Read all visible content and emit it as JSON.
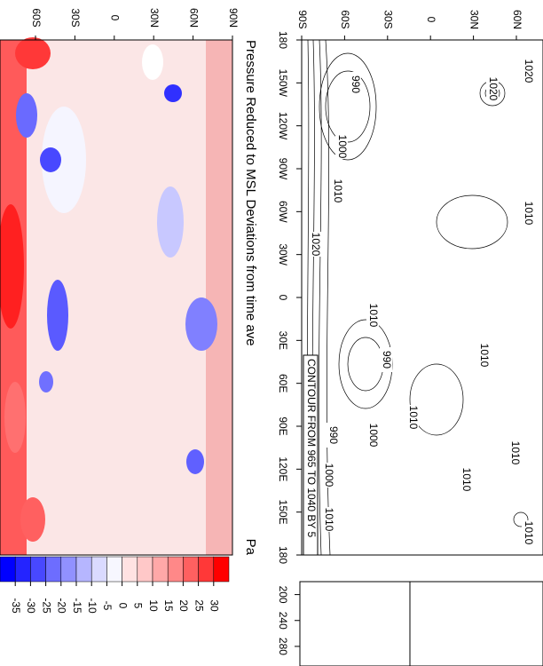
{
  "panels": [
    {
      "lat_ticks": [
        {
          "value": -90,
          "label": "90S"
        },
        {
          "value": -60,
          "label": "60S"
        },
        {
          "value": -30,
          "label": "30S"
        },
        0,
        {
          "value": 30,
          "label": "30N"
        },
        {
          "value": 60,
          "label": "60N"
        }
      ],
      "lon_ticks": [
        {
          "value": -180,
          "label": "180"
        },
        {
          "value": -150,
          "label": "150W"
        },
        {
          "value": -120,
          "label": "120W"
        },
        {
          "value": -90,
          "label": "90W"
        },
        {
          "value": -60,
          "label": "60W"
        },
        {
          "value": -30,
          "label": "30W"
        },
        0,
        {
          "value": 30,
          "label": "30E"
        },
        {
          "value": 60,
          "label": "60E"
        },
        {
          "value": 90,
          "label": "90E"
        },
        {
          "value": 120,
          "label": "120E"
        },
        {
          "value": 150,
          "label": "150E"
        },
        180
      ],
      "contour_labels": [
        990,
        1020,
        1020,
        1000,
        1010,
        1010,
        1020,
        1010,
        990,
        1010,
        1010,
        1000,
        990,
        1000,
        1010,
        1010,
        1010,
        1010
      ],
      "info_label": "CONTOUR FROM 965 TO 1040 BY 5"
    },
    {
      "title": "Pressure Reduced to MSL Deviations from time ave",
      "units": "Pa",
      "lat_ticks": [
        {
          "value": 90,
          "label": "90N"
        },
        {
          "value": 60,
          "label": "60N"
        },
        {
          "value": 30,
          "label": "30N"
        },
        0,
        {
          "value": -30,
          "label": "30S"
        },
        {
          "value": -60,
          "label": "60S"
        }
      ],
      "colorbar": {
        "levels": [
          -35,
          -30,
          -25,
          -20,
          -15,
          -10,
          -5,
          0,
          5,
          10,
          15,
          20,
          25,
          30
        ],
        "colors": [
          "#0000ff",
          "#2424ff",
          "#4848ff",
          "#6d6dff",
          "#9191ff",
          "#b6b6ff",
          "#dadaff",
          "#f7f7ff",
          "#ffe2e2",
          "#ffc8c8",
          "#ffa8a8",
          "#ff8888",
          "#ff6060",
          "#ff3838",
          "#ff0000"
        ]
      }
    }
  ],
  "side_plot": {
    "xlim": [
      180,
      300
    ],
    "xticks": [
      200,
      240,
      280
    ]
  }
}
